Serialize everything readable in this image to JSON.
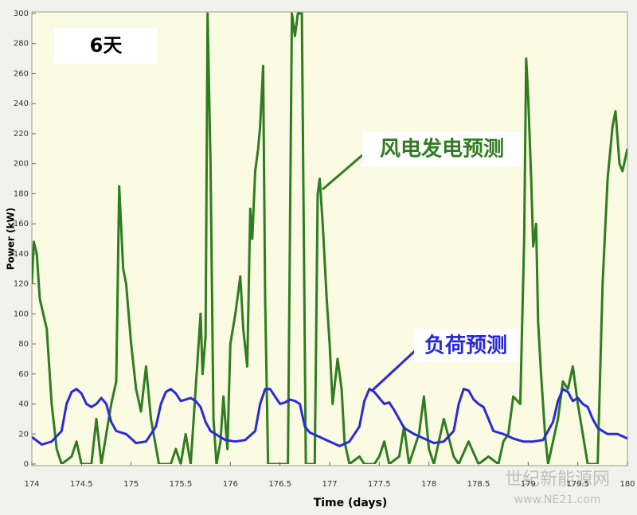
{
  "chart_data": {
    "type": "line",
    "title": "6天",
    "xlabel": "Time (days)",
    "ylabel": "Power (kW)",
    "xlim": [
      174,
      180
    ],
    "ylim": [
      0,
      300
    ],
    "xticks": [
      174,
      174.5,
      175,
      175.5,
      176,
      176.5,
      177,
      177.5,
      178,
      178.5,
      179,
      179.5,
      180
    ],
    "yticks": [
      0,
      20,
      40,
      60,
      80,
      100,
      120,
      140,
      160,
      180,
      200,
      220,
      240,
      260,
      280,
      300
    ],
    "grid": false,
    "watermark": [
      "世纪新能源网",
      "www.NE21.com"
    ],
    "series": [
      {
        "name": "风电发电预测",
        "color": "#2f7d20",
        "x": [
          174.0,
          174.02,
          174.05,
          174.08,
          174.15,
          174.2,
          174.25,
          174.3,
          174.4,
          174.45,
          174.5,
          174.6,
          174.65,
          174.7,
          174.75,
          174.8,
          174.85,
          174.88,
          174.92,
          174.95,
          175.0,
          175.05,
          175.1,
          175.15,
          175.2,
          175.28,
          175.4,
          175.45,
          175.5,
          175.55,
          175.6,
          175.65,
          175.7,
          175.72,
          175.75,
          175.77,
          175.8,
          175.83,
          175.86,
          175.9,
          175.93,
          175.97,
          176.0,
          176.05,
          176.1,
          176.13,
          176.17,
          176.2,
          176.22,
          176.25,
          176.28,
          176.3,
          176.33,
          176.35,
          176.38,
          176.5,
          176.58,
          176.62,
          176.65,
          176.68,
          176.72,
          176.76,
          176.85,
          176.88,
          176.9,
          176.93,
          176.97,
          177.0,
          177.03,
          177.08,
          177.12,
          177.15,
          177.2,
          177.3,
          177.35,
          177.45,
          177.5,
          177.55,
          177.6,
          177.7,
          177.75,
          177.8,
          177.9,
          177.95,
          178.0,
          178.05,
          178.15,
          178.25,
          178.3,
          178.4,
          178.5,
          178.6,
          178.7,
          178.75,
          178.8,
          178.85,
          178.92,
          178.96,
          178.98,
          179.0,
          179.03,
          179.05,
          179.08,
          179.1,
          179.13,
          179.17,
          179.2,
          179.3,
          179.35,
          179.4,
          179.45,
          179.5,
          179.55,
          179.6,
          179.7,
          179.75,
          179.8,
          179.85,
          179.88,
          179.92,
          179.95,
          180.0
        ],
        "values": [
          120,
          148,
          140,
          110,
          90,
          40,
          10,
          0,
          5,
          15,
          0,
          0,
          30,
          0,
          20,
          40,
          55,
          185,
          130,
          120,
          80,
          50,
          35,
          65,
          30,
          0,
          0,
          10,
          0,
          20,
          0,
          50,
          100,
          60,
          85,
          300,
          200,
          30,
          0,
          15,
          45,
          10,
          80,
          100,
          125,
          90,
          65,
          170,
          150,
          195,
          210,
          225,
          265,
          110,
          0,
          0,
          0,
          300,
          285,
          300,
          300,
          0,
          0,
          180,
          190,
          160,
          110,
          80,
          40,
          70,
          50,
          15,
          0,
          5,
          0,
          0,
          5,
          15,
          0,
          5,
          25,
          0,
          20,
          45,
          10,
          0,
          30,
          5,
          0,
          15,
          0,
          5,
          0,
          15,
          20,
          45,
          40,
          150,
          270,
          245,
          190,
          145,
          160,
          95,
          60,
          20,
          0,
          30,
          55,
          50,
          65,
          40,
          20,
          0,
          0,
          120,
          190,
          225,
          235,
          200,
          195,
          210
        ]
      },
      {
        "name": "负荷预测",
        "color": "#2a2ad8",
        "x": [
          174.0,
          174.1,
          174.2,
          174.3,
          174.35,
          174.4,
          174.45,
          174.5,
          174.55,
          174.6,
          174.65,
          174.7,
          174.75,
          174.8,
          174.85,
          174.95,
          175.05,
          175.15,
          175.25,
          175.3,
          175.35,
          175.4,
          175.45,
          175.5,
          175.55,
          175.6,
          175.65,
          175.7,
          175.75,
          175.8,
          175.85,
          175.95,
          176.05,
          176.15,
          176.25,
          176.3,
          176.35,
          176.4,
          176.45,
          176.5,
          176.55,
          176.6,
          176.65,
          176.7,
          176.75,
          176.8,
          176.9,
          177.0,
          177.1,
          177.2,
          177.3,
          177.35,
          177.4,
          177.45,
          177.5,
          177.55,
          177.6,
          177.65,
          177.7,
          177.75,
          177.85,
          177.95,
          178.05,
          178.15,
          178.25,
          178.3,
          178.35,
          178.4,
          178.45,
          178.5,
          178.55,
          178.6,
          178.65,
          178.75,
          178.85,
          178.95,
          179.05,
          179.15,
          179.25,
          179.3,
          179.35,
          179.4,
          179.45,
          179.5,
          179.55,
          179.6,
          179.65,
          179.7,
          179.8,
          179.9,
          180.0
        ],
        "values": [
          18,
          13,
          15,
          22,
          40,
          48,
          50,
          47,
          40,
          38,
          40,
          44,
          40,
          28,
          22,
          20,
          14,
          15,
          25,
          40,
          48,
          50,
          47,
          42,
          43,
          44,
          42,
          38,
          28,
          22,
          20,
          16,
          15,
          16,
          22,
          40,
          50,
          50,
          45,
          40,
          41,
          43,
          42,
          40,
          25,
          21,
          18,
          15,
          12,
          15,
          25,
          42,
          50,
          48,
          44,
          40,
          41,
          36,
          30,
          24,
          20,
          17,
          14,
          15,
          22,
          40,
          50,
          49,
          43,
          40,
          38,
          30,
          22,
          20,
          17,
          15,
          15,
          16,
          28,
          42,
          50,
          48,
          42,
          44,
          40,
          38,
          30,
          24,
          20,
          20,
          17
        ]
      }
    ]
  }
}
